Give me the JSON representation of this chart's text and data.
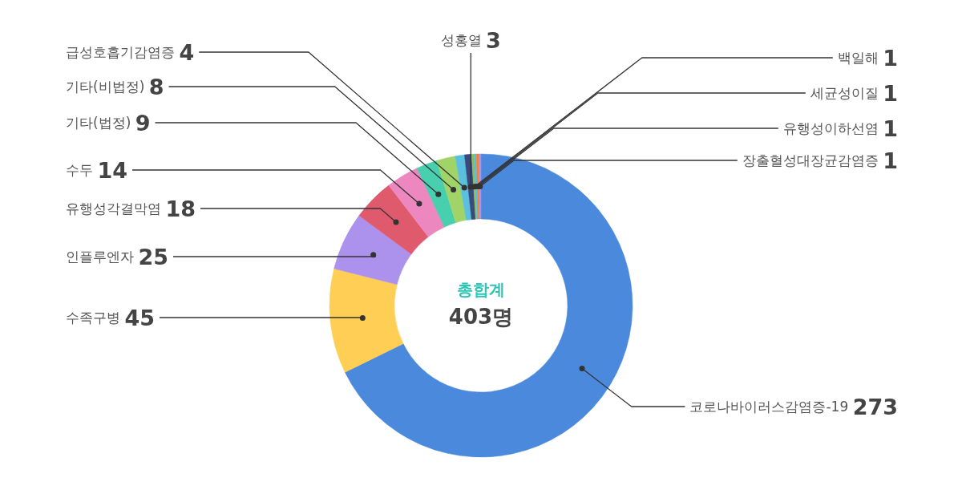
{
  "chart_data": {
    "type": "donut",
    "categories": [
      "코로나바이러스감염증-19",
      "수족구병",
      "인플루엔자",
      "유행성각결막염",
      "수두",
      "기타(법정)",
      "기타(비법정)",
      "급성호흡기감염증",
      "성홍열",
      "백일해",
      "세균성이질",
      "유행성이하선염",
      "장출혈성대장균감염증"
    ],
    "values": [
      273,
      45,
      25,
      18,
      14,
      9,
      8,
      4,
      3,
      1,
      1,
      1,
      1
    ],
    "colors": [
      "#4a89dc",
      "#ffce54",
      "#ac92ec",
      "#e05a6e",
      "#ec87c0",
      "#48cfad",
      "#a0d468",
      "#5bc0e0",
      "#3b4a7e",
      "#8cc152",
      "#4fc1e9",
      "#ff7f27",
      "#b48fe0"
    ],
    "data_labels": true,
    "annotations": [
      "총합계",
      "403명"
    ]
  }
}
